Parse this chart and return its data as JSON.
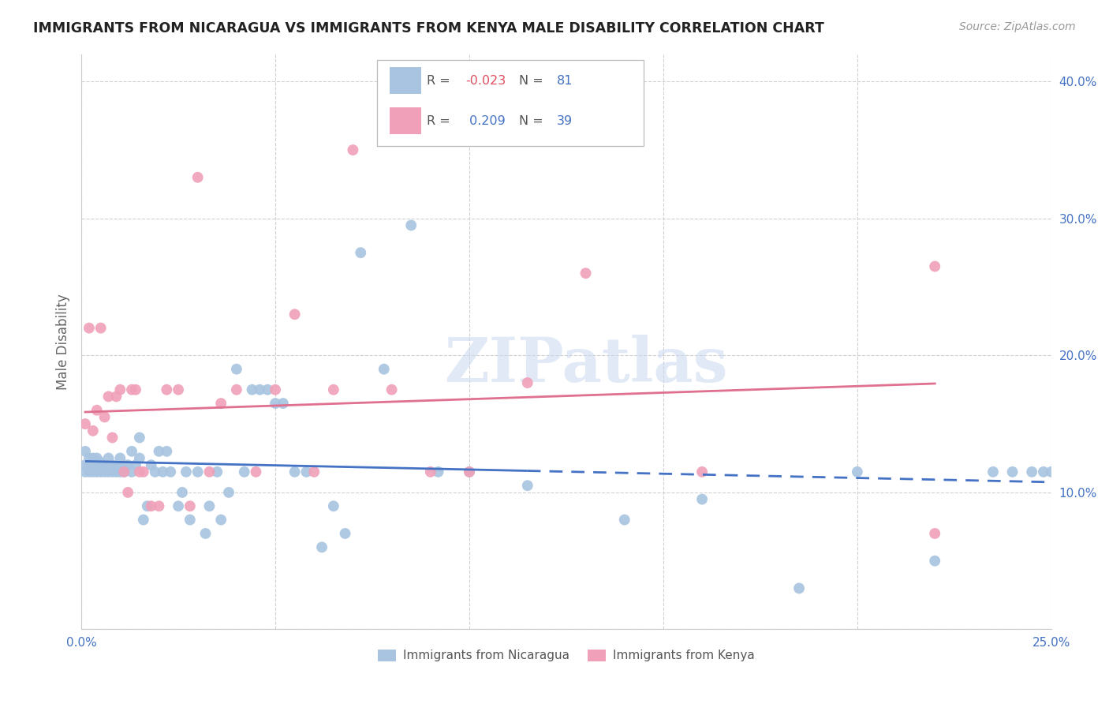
{
  "title": "IMMIGRANTS FROM NICARAGUA VS IMMIGRANTS FROM KENYA MALE DISABILITY CORRELATION CHART",
  "source": "Source: ZipAtlas.com",
  "ylabel_label": "Male Disability",
  "xlim": [
    0.0,
    0.25
  ],
  "ylim": [
    0.0,
    0.42
  ],
  "x_ticks": [
    0.0,
    0.05,
    0.1,
    0.15,
    0.2,
    0.25
  ],
  "x_tick_labels": [
    "0.0%",
    "",
    "",
    "",
    "",
    "25.0%"
  ],
  "y_ticks": [
    0.0,
    0.1,
    0.2,
    0.3,
    0.4
  ],
  "y_tick_labels": [
    "",
    "10.0%",
    "20.0%",
    "30.0%",
    "40.0%"
  ],
  "grid_color": "#d0d0d0",
  "background_color": "#ffffff",
  "watermark": "ZIPatlas",
  "nicaragua_color": "#a8c4e0",
  "kenya_color": "#f0a0b8",
  "nicaragua_R": -0.023,
  "nicaragua_N": 81,
  "kenya_R": 0.209,
  "kenya_N": 39,
  "nicaragua_line_color": "#4472c4",
  "kenya_line_color": "#e07090",
  "nicaragua_line_solid_end": 0.115,
  "kenya_line_x0": 0.0,
  "kenya_line_x1": 0.22,
  "nicaragua_x": [
    0.001,
    0.001,
    0.001,
    0.002,
    0.002,
    0.002,
    0.003,
    0.003,
    0.003,
    0.004,
    0.004,
    0.004,
    0.005,
    0.005,
    0.005,
    0.006,
    0.006,
    0.007,
    0.007,
    0.007,
    0.008,
    0.008,
    0.009,
    0.009,
    0.01,
    0.01,
    0.01,
    0.011,
    0.011,
    0.012,
    0.013,
    0.013,
    0.014,
    0.015,
    0.015,
    0.016,
    0.017,
    0.018,
    0.019,
    0.02,
    0.021,
    0.022,
    0.023,
    0.025,
    0.026,
    0.027,
    0.028,
    0.03,
    0.032,
    0.033,
    0.035,
    0.036,
    0.038,
    0.04,
    0.042,
    0.044,
    0.046,
    0.048,
    0.05,
    0.052,
    0.055,
    0.058,
    0.062,
    0.065,
    0.068,
    0.072,
    0.078,
    0.085,
    0.092,
    0.1,
    0.115,
    0.14,
    0.16,
    0.185,
    0.2,
    0.22,
    0.235,
    0.24,
    0.245,
    0.248,
    0.25
  ],
  "nicaragua_y": [
    0.13,
    0.12,
    0.115,
    0.125,
    0.12,
    0.115,
    0.125,
    0.115,
    0.12,
    0.118,
    0.125,
    0.115,
    0.118,
    0.122,
    0.115,
    0.115,
    0.12,
    0.118,
    0.115,
    0.125,
    0.115,
    0.12,
    0.118,
    0.115,
    0.125,
    0.118,
    0.115,
    0.12,
    0.115,
    0.12,
    0.115,
    0.13,
    0.12,
    0.14,
    0.125,
    0.08,
    0.09,
    0.12,
    0.115,
    0.13,
    0.115,
    0.13,
    0.115,
    0.09,
    0.1,
    0.115,
    0.08,
    0.115,
    0.07,
    0.09,
    0.115,
    0.08,
    0.1,
    0.19,
    0.115,
    0.175,
    0.175,
    0.175,
    0.165,
    0.165,
    0.115,
    0.115,
    0.06,
    0.09,
    0.07,
    0.275,
    0.19,
    0.295,
    0.115,
    0.115,
    0.105,
    0.08,
    0.095,
    0.03,
    0.115,
    0.05,
    0.115,
    0.115,
    0.115,
    0.115,
    0.115
  ],
  "kenya_x": [
    0.001,
    0.002,
    0.003,
    0.004,
    0.005,
    0.006,
    0.007,
    0.008,
    0.009,
    0.01,
    0.011,
    0.012,
    0.013,
    0.014,
    0.015,
    0.016,
    0.018,
    0.02,
    0.022,
    0.025,
    0.028,
    0.03,
    0.033,
    0.036,
    0.04,
    0.045,
    0.05,
    0.055,
    0.06,
    0.065,
    0.07,
    0.08,
    0.09,
    0.1,
    0.115,
    0.13,
    0.16,
    0.22,
    0.22
  ],
  "kenya_y": [
    0.15,
    0.22,
    0.145,
    0.16,
    0.22,
    0.155,
    0.17,
    0.14,
    0.17,
    0.175,
    0.115,
    0.1,
    0.175,
    0.175,
    0.115,
    0.115,
    0.09,
    0.09,
    0.175,
    0.175,
    0.09,
    0.33,
    0.115,
    0.165,
    0.175,
    0.115,
    0.175,
    0.23,
    0.115,
    0.175,
    0.35,
    0.175,
    0.115,
    0.115,
    0.18,
    0.26,
    0.115,
    0.265,
    0.07
  ]
}
